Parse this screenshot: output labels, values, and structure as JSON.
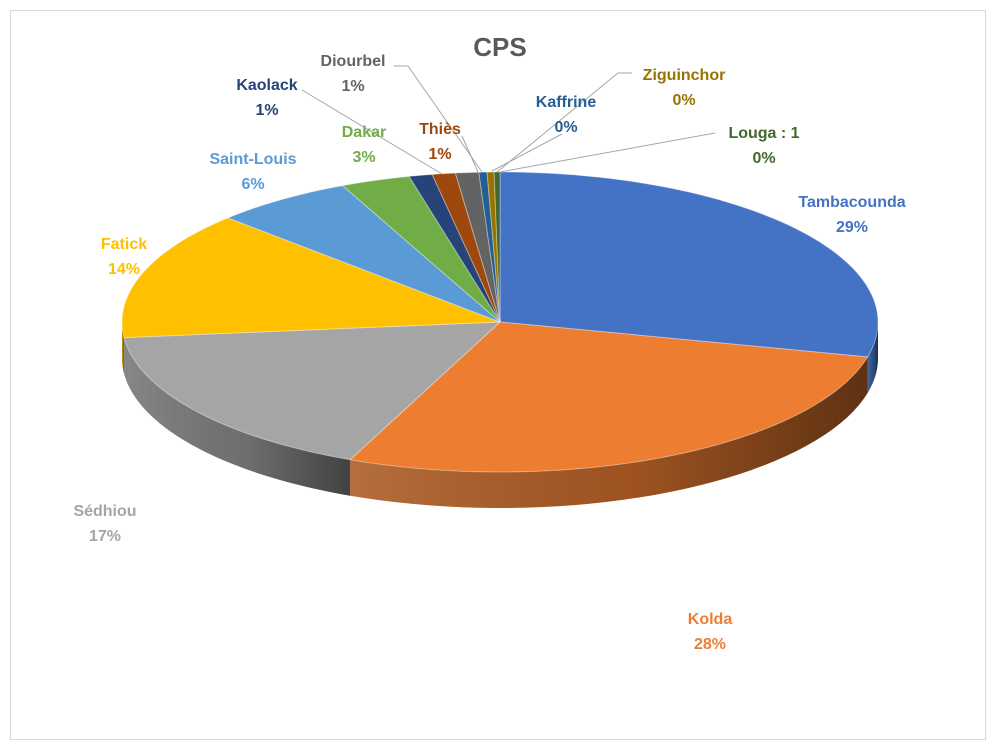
{
  "chart_data": {
    "type": "pie",
    "title": "CPS",
    "style": "3d-pie",
    "slices": [
      {
        "name": "Tambacounda",
        "label": "29%",
        "value": 29,
        "color": "#4472C4"
      },
      {
        "name": "Kolda",
        "label": "28%",
        "value": 28,
        "color": "#ED7D31"
      },
      {
        "name": "Sédhiou",
        "label": "17%",
        "value": 17,
        "color": "#A5A5A5"
      },
      {
        "name": "Fatick",
        "label": "14%",
        "value": 14,
        "color": "#FFC000"
      },
      {
        "name": "Saint-Louis",
        "label": "6%",
        "value": 6,
        "color": "#5B9BD5"
      },
      {
        "name": "Dakar",
        "label": "3%",
        "value": 3,
        "color": "#70AD47"
      },
      {
        "name": "Kaolack",
        "label": "1%",
        "value": 1,
        "color": "#264478"
      },
      {
        "name": "Thiès",
        "label": "1%",
        "value": 1,
        "color": "#9E480E"
      },
      {
        "name": "Diourbel",
        "label": "1%",
        "value": 1,
        "color": "#636363"
      },
      {
        "name": "Kaffrine",
        "label": "0%",
        "value": 0.35,
        "color": "#255E91"
      },
      {
        "name": "Ziguinchor",
        "label": "0%",
        "value": 0.3,
        "color": "#997300"
      },
      {
        "name": "Louga : 1",
        "label": "0%",
        "value": 0.25,
        "color": "#43682B"
      }
    ]
  }
}
